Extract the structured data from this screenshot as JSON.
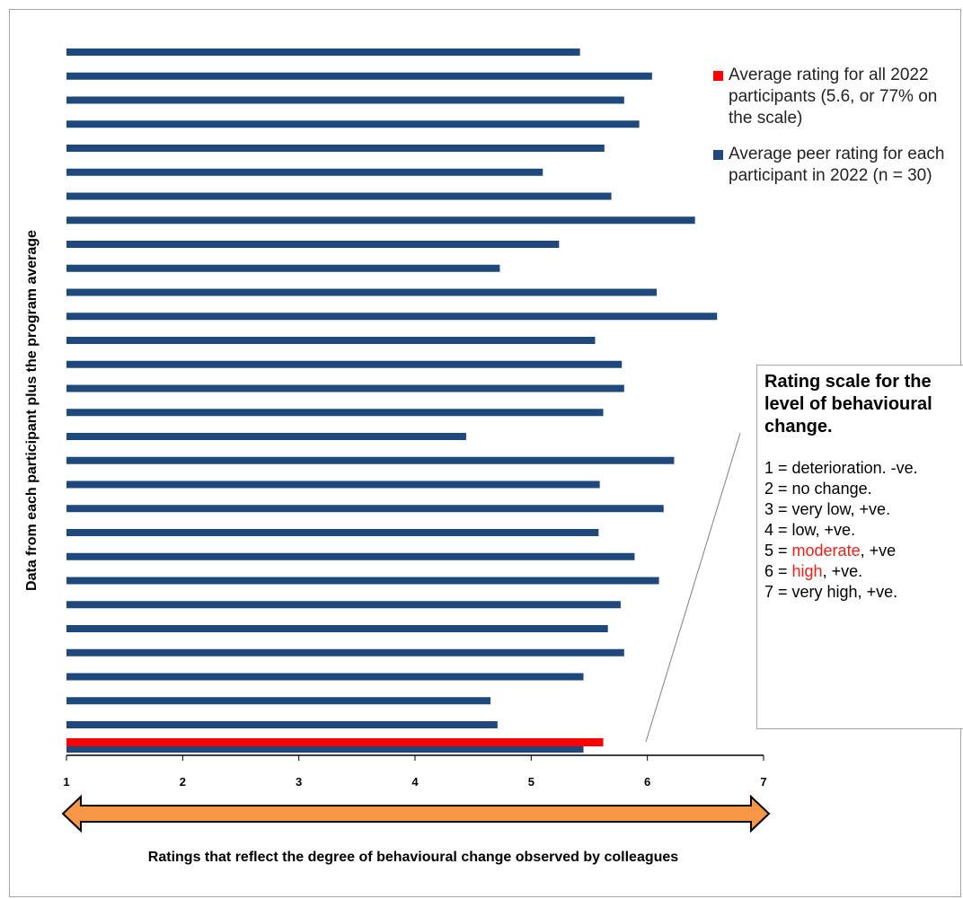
{
  "chart_data": {
    "type": "bar",
    "orientation": "horizontal",
    "ylabel": "Data from each participant plus the program average",
    "xlabel": "Ratings that reflect the degree of behavioural change observed by colleagues",
    "xlim": [
      1,
      7
    ],
    "xticks": [
      "1",
      "2",
      "3",
      "4",
      "5",
      "6",
      "7"
    ],
    "series": [
      {
        "name": "Average peer rating for each participant in 2022 (n = 30)",
        "color": "#1f497d",
        "values": [
          5.42,
          6.04,
          5.8,
          5.93,
          5.63,
          5.1,
          5.69,
          6.41,
          5.24,
          4.73,
          6.08,
          6.6,
          5.55,
          5.78,
          5.8,
          5.62,
          4.44,
          6.23,
          5.59,
          6.14,
          5.58,
          5.89,
          6.1,
          5.77,
          5.66,
          5.8,
          5.45,
          4.65,
          4.71,
          5.45
        ]
      },
      {
        "name": "Average rating for all 2022 participants (5.6, or 77% on the scale)",
        "color": "#ff0000",
        "values": [
          5.62
        ]
      }
    ],
    "legend_position": "right",
    "grid": false
  },
  "legend": {
    "items": [
      {
        "label": "Average rating for all 2022 participants (5.6, or 77% on the scale)",
        "color": "#ff0000"
      },
      {
        "label": "Average peer rating for each participant in 2022 (n = 30)",
        "color": "#1f497d"
      }
    ]
  },
  "scale_box": {
    "title": "Rating scale for the level of behavioural change.",
    "items": [
      {
        "pre": "1 = deterioration. -ve.",
        "hl": "",
        "post": ""
      },
      {
        "pre": "2 = no change.",
        "hl": "",
        "post": ""
      },
      {
        "pre": "3 = very low, +ve.",
        "hl": "",
        "post": ""
      },
      {
        "pre": "4 = low, +ve.",
        "hl": "",
        "post": ""
      },
      {
        "pre": "5 = ",
        "hl": "moderate",
        "post": ", +ve"
      },
      {
        "pre": "6 = ",
        "hl": "high",
        "post": ", +ve."
      },
      {
        "pre": "7 = very high, +ve.",
        "hl": "",
        "post": ""
      }
    ]
  },
  "colors": {
    "arrow_fill": "#f79646",
    "arrow_stroke": "#000000",
    "highlight": "#e8201a"
  }
}
